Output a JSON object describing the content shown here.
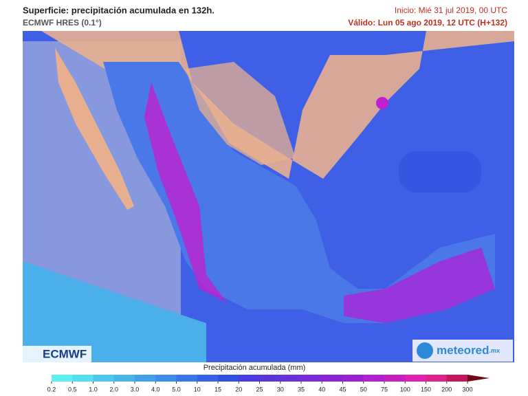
{
  "header": {
    "title": "Superficie: precipitación acumulada en 132h.",
    "model": "ECMWF HRES (0.1°)",
    "init": "Inicio: Mié 31 jul 2019, 00 UTC",
    "valid": "Válido: Lun 05 ago 2019, 12 UTC (H+132)"
  },
  "logos": {
    "left": "ECMWF",
    "right": "meteored",
    "right_suffix": ".mx"
  },
  "colorbar": {
    "title": "Precipitación acumulada (mm)",
    "labels": [
      "0.2",
      "0.5",
      "1.0",
      "2.0",
      "3.0",
      "4.0",
      "5.0",
      "10",
      "15",
      "20",
      "25",
      "30",
      "35",
      "40",
      "45",
      "50",
      "75",
      "100",
      "150",
      "200",
      "300"
    ],
    "colors": [
      "#5ef0f0",
      "#55ddf0",
      "#4ec8ee",
      "#48b4ec",
      "#42a0ea",
      "#3d8ce8",
      "#3878e6",
      "#3464e4",
      "#3050e0",
      "#4a3ae0",
      "#5a36d8",
      "#6a30d8",
      "#7a2ad6",
      "#8a24d4",
      "#9a20d2",
      "#b020d0",
      "#c820c0",
      "#e020b0",
      "#e0208a",
      "#c0185a",
      "#700818"
    ]
  }
}
